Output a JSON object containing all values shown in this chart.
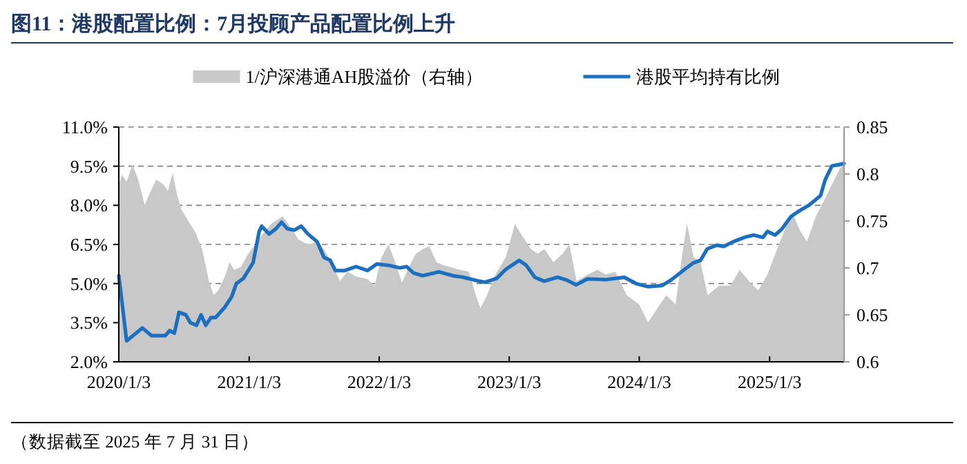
{
  "chart_data": {
    "type": "line",
    "title": "图11：港股配置比例：7月投顾产品配置比例上升",
    "xlim": [
      "2020-01-03",
      "2025-07-31"
    ],
    "xticks": [
      {
        "value": "2020-01-03",
        "label": "2020/1/3"
      },
      {
        "value": "2021-01-03",
        "label": "2021/1/3"
      },
      {
        "value": "2022-01-03",
        "label": "2022/1/3"
      },
      {
        "value": "2023-01-03",
        "label": "2023/1/3"
      },
      {
        "value": "2024-01-03",
        "label": "2024/1/3"
      },
      {
        "value": "2025-01-03",
        "label": "2025/1/3"
      }
    ],
    "ylim": [
      2,
      11
    ],
    "yticks": [
      {
        "value": 2,
        "label": "2.0%"
      },
      {
        "value": 3.5,
        "label": "3.5%"
      },
      {
        "value": 5,
        "label": "5.0%"
      },
      {
        "value": 6.5,
        "label": "6.5%"
      },
      {
        "value": 8,
        "label": "8.0%"
      },
      {
        "value": 9.5,
        "label": "9.5%"
      },
      {
        "value": 11,
        "label": "11.0%"
      }
    ],
    "y2lim": [
      0.6,
      0.85
    ],
    "y2ticks": [
      0.6,
      0.65,
      0.7,
      0.75,
      0.8,
      0.85
    ],
    "grid": "y",
    "legend": "top",
    "series": [
      {
        "name": "1/沪深港通AH股溢价（右轴）",
        "type": "area",
        "axis": "y2",
        "color": "#c8c8c8",
        "x": [
          "2020-01-03",
          "2020-01-12",
          "2020-01-25",
          "2020-02-10",
          "2020-02-25",
          "2020-03-16",
          "2020-03-29",
          "2020-04-17",
          "2020-05-07",
          "2020-05-20",
          "2020-06-02",
          "2020-06-14",
          "2020-06-27",
          "2020-07-16",
          "2020-08-05",
          "2020-08-24",
          "2020-09-12",
          "2020-09-25",
          "2020-10-08",
          "2020-10-27",
          "2020-11-09",
          "2020-11-22",
          "2020-12-11",
          "2020-12-31",
          "2021-01-20",
          "2021-02-08",
          "2021-03-06",
          "2021-04-07",
          "2021-04-26",
          "2021-05-22",
          "2021-06-17",
          "2021-07-13",
          "2021-08-01",
          "2021-08-21",
          "2021-09-15",
          "2021-10-05",
          "2021-10-30",
          "2021-12-01",
          "2021-12-21",
          "2022-01-09",
          "2022-01-29",
          "2022-02-17",
          "2022-03-08",
          "2022-03-27",
          "2022-04-16",
          "2022-05-05",
          "2022-05-24",
          "2022-06-13",
          "2022-07-02",
          "2022-07-22",
          "2022-08-17",
          "2022-09-12",
          "2022-10-01",
          "2022-10-14",
          "2022-11-02",
          "2022-11-22",
          "2022-12-24",
          "2023-01-19",
          "2023-02-07",
          "2023-03-05",
          "2023-03-24",
          "2023-04-12",
          "2023-05-07",
          "2023-06-02",
          "2023-06-21",
          "2023-07-11",
          "2023-08-12",
          "2023-09-07",
          "2023-10-02",
          "2023-10-28",
          "2023-11-29",
          "2024-01-03",
          "2024-01-28",
          "2024-02-23",
          "2024-03-19",
          "2024-04-14",
          "2024-05-03",
          "2024-05-16",
          "2024-06-04",
          "2024-06-23",
          "2024-07-13",
          "2024-08-14",
          "2024-09-15",
          "2024-10-11",
          "2024-11-06",
          "2024-12-02",
          "2024-12-28",
          "2025-01-24",
          "2025-02-19",
          "2025-03-10",
          "2025-03-29",
          "2025-04-18",
          "2025-05-13",
          "2025-06-01",
          "2025-06-21",
          "2025-07-10",
          "2025-07-31"
        ],
        "values": [
          0.789,
          0.799,
          0.792,
          0.81,
          0.796,
          0.767,
          0.779,
          0.794,
          0.789,
          0.782,
          0.801,
          0.779,
          0.762,
          0.75,
          0.738,
          0.72,
          0.686,
          0.671,
          0.676,
          0.691,
          0.706,
          0.698,
          0.701,
          0.715,
          0.725,
          0.735,
          0.747,
          0.755,
          0.745,
          0.73,
          0.725,
          0.728,
          0.72,
          0.706,
          0.686,
          0.696,
          0.691,
          0.688,
          0.681,
          0.711,
          0.725,
          0.706,
          0.684,
          0.701,
          0.715,
          0.72,
          0.723,
          0.706,
          0.703,
          0.701,
          0.698,
          0.696,
          0.671,
          0.657,
          0.671,
          0.691,
          0.711,
          0.747,
          0.735,
          0.72,
          0.715,
          0.72,
          0.706,
          0.715,
          0.725,
          0.686,
          0.693,
          0.698,
          0.693,
          0.696,
          0.671,
          0.661,
          0.642,
          0.657,
          0.671,
          0.661,
          0.715,
          0.747,
          0.711,
          0.706,
          0.671,
          0.681,
          0.681,
          0.698,
          0.686,
          0.676,
          0.693,
          0.72,
          0.745,
          0.757,
          0.74,
          0.728,
          0.755,
          0.769,
          0.784,
          0.799,
          0.814
        ]
      },
      {
        "name": "港股平均持有比例",
        "type": "line",
        "color": "#1b6fbe",
        "x": [
          "2020-01-03",
          "2020-01-25",
          "2020-03-09",
          "2020-04-04",
          "2020-05-12",
          "2020-05-25",
          "2020-06-07",
          "2020-06-20",
          "2020-07-09",
          "2020-07-22",
          "2020-08-08",
          "2020-08-21",
          "2020-09-03",
          "2020-09-18",
          "2020-10-01",
          "2020-10-27",
          "2020-11-15",
          "2020-11-28",
          "2020-12-18",
          "2021-01-14",
          "2021-01-31",
          "2021-02-07",
          "2021-02-28",
          "2021-03-19",
          "2021-04-04",
          "2021-04-20",
          "2021-05-10",
          "2021-05-29",
          "2021-06-17",
          "2021-07-13",
          "2021-08-01",
          "2021-08-18",
          "2021-09-02",
          "2021-09-28",
          "2021-10-30",
          "2021-12-01",
          "2021-12-27",
          "2022-01-29",
          "2022-03-02",
          "2022-03-21",
          "2022-04-10",
          "2022-05-05",
          "2022-06-20",
          "2022-07-29",
          "2022-08-24",
          "2022-10-08",
          "2022-10-27",
          "2022-11-29",
          "2022-12-24",
          "2023-01-31",
          "2023-02-19",
          "2023-03-16",
          "2023-04-11",
          "2023-05-19",
          "2023-06-14",
          "2023-07-10",
          "2023-08-11",
          "2023-10-01",
          "2023-11-22",
          "2023-12-25",
          "2024-01-28",
          "2024-03-06",
          "2024-04-01",
          "2024-05-09",
          "2024-06-04",
          "2024-06-23",
          "2024-07-12",
          "2024-08-08",
          "2024-08-27",
          "2024-09-22",
          "2024-10-24",
          "2024-11-19",
          "2024-12-15",
          "2024-12-28",
          "2025-01-18",
          "2025-02-06",
          "2025-03-04",
          "2025-03-23",
          "2025-04-24",
          "2025-05-26",
          "2025-06-08",
          "2025-06-27",
          "2025-07-31"
        ],
        "values": [
          5.3,
          2.8,
          3.3,
          3.0,
          3.0,
          3.2,
          3.1,
          3.9,
          3.8,
          3.5,
          3.4,
          3.8,
          3.4,
          3.7,
          3.7,
          4.1,
          4.5,
          5.0,
          5.2,
          5.8,
          7.0,
          7.2,
          6.9,
          7.1,
          7.35,
          7.1,
          7.05,
          7.2,
          6.9,
          6.6,
          6.0,
          5.9,
          5.5,
          5.5,
          5.65,
          5.5,
          5.75,
          5.7,
          5.6,
          5.65,
          5.4,
          5.3,
          5.45,
          5.3,
          5.25,
          5.1,
          5.05,
          5.2,
          5.54,
          5.89,
          5.71,
          5.24,
          5.09,
          5.24,
          5.13,
          4.95,
          5.18,
          5.15,
          5.24,
          5.0,
          4.88,
          4.92,
          5.13,
          5.54,
          5.8,
          5.89,
          6.33,
          6.47,
          6.42,
          6.6,
          6.77,
          6.86,
          6.77,
          7.0,
          6.86,
          7.08,
          7.57,
          7.75,
          8.01,
          8.37,
          8.98,
          9.51,
          9.6
        ]
      }
    ],
    "annotations": [
      "（数据截至 2025 年 7 月 31 日）"
    ]
  }
}
